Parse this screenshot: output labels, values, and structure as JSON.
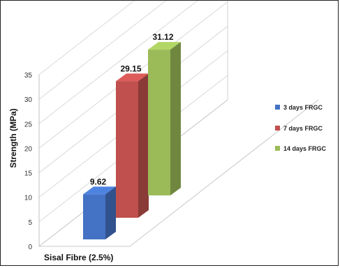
{
  "chart_data": {
    "type": "bar",
    "three_d": true,
    "categories": [
      "Sisal Fibre (2.5%)"
    ],
    "series": [
      {
        "name": "3 days FRGC",
        "values": [
          9.62
        ],
        "label": "9.62",
        "color": "#4472C4"
      },
      {
        "name": "7 days FRGC",
        "values": [
          29.15
        ],
        "label": "29.15",
        "color": "#C0504D"
      },
      {
        "name": "14 days FRGC",
        "values": [
          31.12
        ],
        "label": "31.12",
        "color": "#9BBB59"
      }
    ],
    "ylabel": "Strength (MPa)",
    "xlabel": "",
    "ylim": [
      0,
      35
    ],
    "yticks": [
      "0",
      "5",
      "10",
      "15",
      "20",
      "25",
      "30",
      "35"
    ],
    "grid": true,
    "legend_position": "right"
  }
}
